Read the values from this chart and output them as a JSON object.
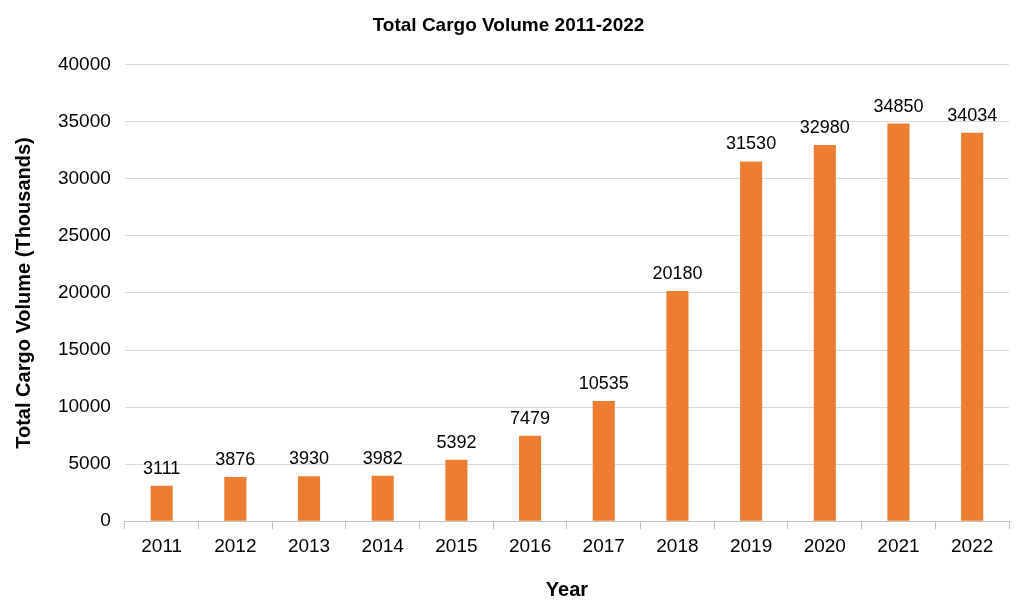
{
  "chart_data": {
    "type": "bar",
    "title": "Total Cargo Volume 2011-2022",
    "xlabel": "Year",
    "ylabel": "Total Cargo Volume (Thousands)",
    "categories": [
      "2011",
      "2012",
      "2013",
      "2014",
      "2015",
      "2016",
      "2017",
      "2018",
      "2019",
      "2020",
      "2021",
      "2022"
    ],
    "values": [
      3111,
      3876,
      3930,
      3982,
      5392,
      7479,
      10535,
      20180,
      31530,
      32980,
      34850,
      34034
    ],
    "color": "#ed7d31",
    "ylim": [
      0,
      40000
    ],
    "yticks": [
      0,
      5000,
      10000,
      15000,
      20000,
      25000,
      30000,
      35000,
      40000
    ],
    "grid": "y",
    "data_labels": true,
    "legend": false
  }
}
